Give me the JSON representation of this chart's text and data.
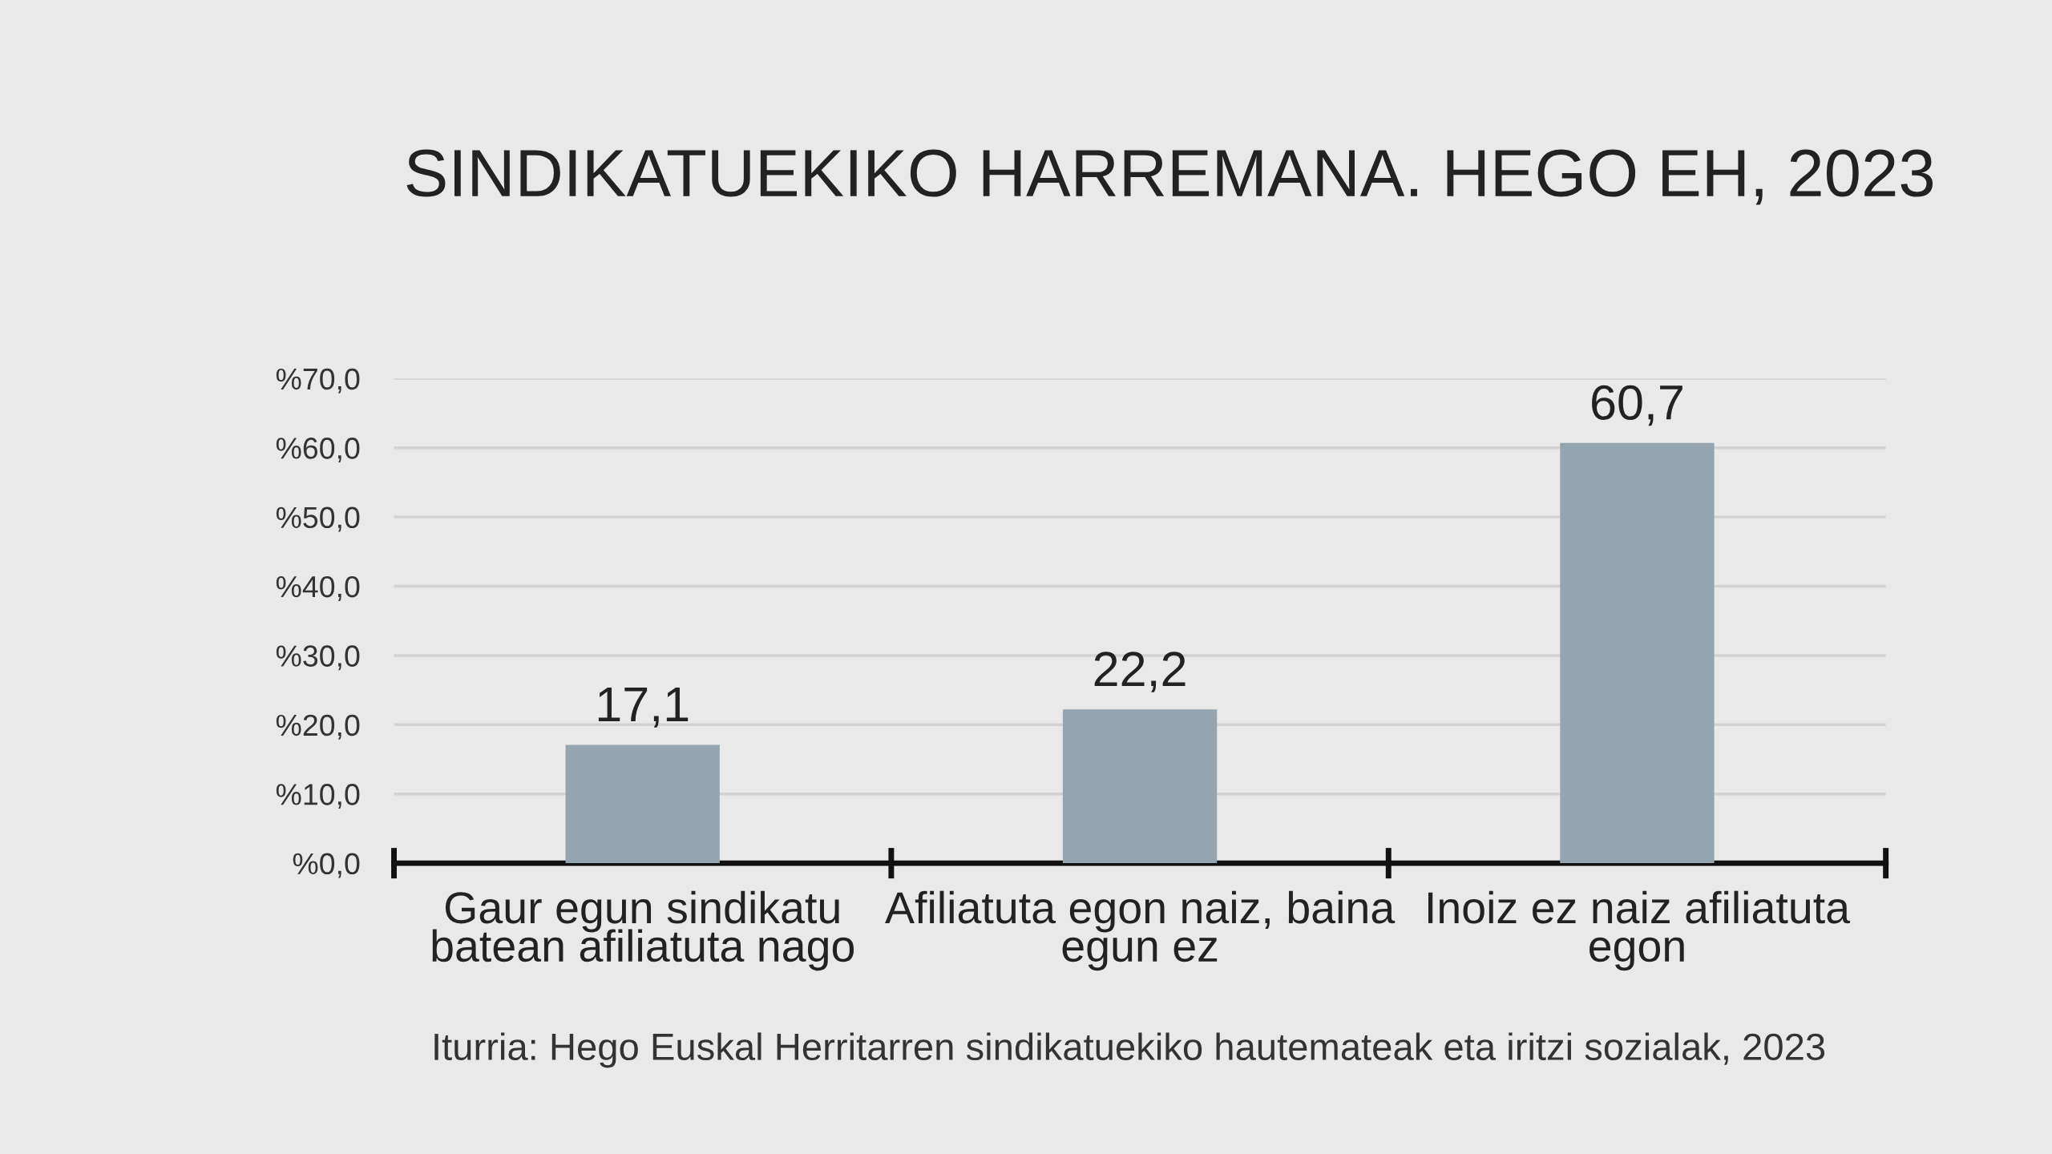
{
  "chart_data": {
    "type": "bar",
    "title": "SINDIKATUEKIKO HARREMANA. HEGO EH, 2023",
    "categories": [
      "Gaur egun sindikatu\nbatean afiliatuta nago",
      "Afiliatuta egon naiz, baina\negun ez",
      "Inoiz ez naiz afiliatuta\negon"
    ],
    "values": [
      17.1,
      22.2,
      60.7
    ],
    "value_labels": [
      "17,1",
      "22,2",
      "60,7"
    ],
    "color": "#95a5b0",
    "ylim": [
      0,
      70
    ],
    "yticks": [
      {
        "value": 0,
        "label": "%0,0"
      },
      {
        "value": 10,
        "label": "%10,0"
      },
      {
        "value": 20,
        "label": "%20,0"
      },
      {
        "value": 30,
        "label": "%30,0"
      },
      {
        "value": 40,
        "label": "%40,0"
      },
      {
        "value": 50,
        "label": "%50,0"
      },
      {
        "value": 60,
        "label": "%60,0"
      },
      {
        "value": 70,
        "label": "%70,0"
      }
    ],
    "grid": "y",
    "annotations": [
      "Iturria: Hego Euskal Herritarren sindikatuekiko hautemateak eta iritzi sozialak, 2023"
    ]
  }
}
